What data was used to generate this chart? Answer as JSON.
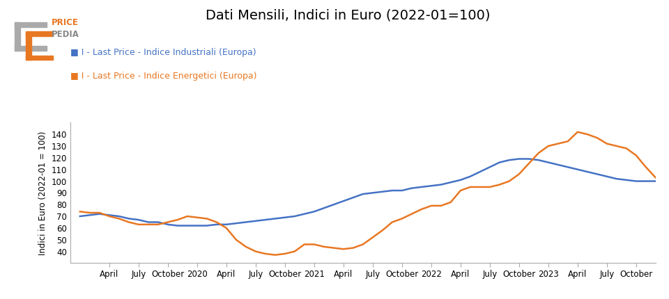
{
  "title": "Dati Mensili, Indici in Euro (2022-01=100)",
  "ylabel": "Indici in Euro (2022-01 = 100)",
  "line1_label": "I - Last Price - Indice Industriali (Europa)",
  "line2_label": "I - Last Price - Indice Energetici (Europa)",
  "line1_color": "#4472C4",
  "line2_color": "#E87722",
  "background_color": "#ffffff",
  "ylim": [
    30,
    150
  ],
  "yticks": [
    40,
    50,
    60,
    70,
    80,
    90,
    100,
    110,
    120,
    130,
    140
  ],
  "industriali": [
    70,
    71,
    72,
    71,
    70,
    68,
    67,
    65,
    65,
    63,
    62,
    62,
    62,
    62,
    63,
    63,
    64,
    65,
    66,
    67,
    68,
    69,
    70,
    72,
    74,
    77,
    80,
    83,
    86,
    89,
    90,
    91,
    92,
    92,
    94,
    95,
    96,
    97,
    99,
    101,
    104,
    108,
    112,
    116,
    118,
    119,
    119,
    118,
    116,
    114,
    112,
    110,
    108,
    106,
    104,
    102,
    101,
    100,
    100,
    100
  ],
  "energetici": [
    74,
    73,
    73,
    70,
    68,
    65,
    63,
    63,
    63,
    65,
    67,
    70,
    69,
    68,
    65,
    60,
    50,
    44,
    40,
    38,
    37,
    38,
    40,
    46,
    46,
    44,
    43,
    42,
    43,
    46,
    52,
    58,
    65,
    68,
    72,
    76,
    79,
    79,
    82,
    92,
    95,
    95,
    95,
    97,
    100,
    106,
    115,
    124,
    130,
    132,
    134,
    142,
    140,
    137,
    132,
    130,
    128,
    122,
    112,
    103
  ],
  "tick_positions": [
    3,
    6,
    9,
    12,
    15,
    18,
    21,
    24,
    27,
    30,
    33,
    36,
    39,
    42,
    45,
    48,
    51,
    54,
    57
  ],
  "tick_labels": [
    "April",
    "July",
    "October",
    "2020",
    "April",
    "July",
    "October",
    "2021",
    "April",
    "July",
    "October",
    "2022",
    "April",
    "July",
    "October",
    "2023",
    "April",
    "July",
    "October"
  ],
  "n": 60
}
